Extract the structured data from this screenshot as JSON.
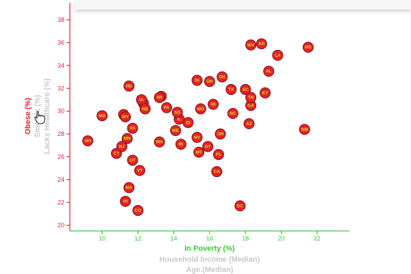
{
  "chart_data": {
    "type": "scatter",
    "title": "",
    "x_labels": {
      "active": "In Poverty (%)",
      "inactive": [
        "Household Income (Median)",
        "Age (Median)"
      ]
    },
    "y_labels": {
      "active": "Obese (%)",
      "inactive": [
        "Smokes (%)",
        "Lacks Healthcare (%)"
      ]
    },
    "xlim": [
      8.2,
      23.8
    ],
    "ylim": [
      19.5,
      39.5
    ],
    "x_ticks": [
      10,
      12,
      14,
      16,
      18,
      20,
      22
    ],
    "y_ticks": [
      20,
      22,
      24,
      26,
      28,
      30,
      32,
      34,
      36,
      38
    ],
    "points": [
      {
        "abbr": "AL",
        "x": 19.3,
        "y": 33.5
      },
      {
        "abbr": "AK",
        "x": 11.2,
        "y": 29.7
      },
      {
        "abbr": "AZ",
        "x": 18.2,
        "y": 28.9
      },
      {
        "abbr": "AR",
        "x": 18.9,
        "y": 35.9
      },
      {
        "abbr": "CA",
        "x": 16.4,
        "y": 24.7
      },
      {
        "abbr": "CO",
        "x": 12.0,
        "y": 21.3
      },
      {
        "abbr": "CT",
        "x": 10.8,
        "y": 26.3
      },
      {
        "abbr": "DE",
        "x": 12.3,
        "y": 30.7
      },
      {
        "abbr": "DC",
        "x": 17.7,
        "y": 21.7
      },
      {
        "abbr": "FL",
        "x": 16.5,
        "y": 26.2
      },
      {
        "abbr": "GA",
        "x": 18.3,
        "y": 30.5
      },
      {
        "abbr": "HI",
        "x": 11.3,
        "y": 22.1
      },
      {
        "abbr": "ID",
        "x": 14.8,
        "y": 29.0
      },
      {
        "abbr": "IL",
        "x": 14.3,
        "y": 29.3
      },
      {
        "abbr": "IN",
        "x": 15.3,
        "y": 32.7
      },
      {
        "abbr": "IA",
        "x": 12.2,
        "y": 31.0
      },
      {
        "abbr": "KS",
        "x": 13.3,
        "y": 31.3
      },
      {
        "abbr": "KY",
        "x": 19.1,
        "y": 31.6
      },
      {
        "abbr": "LA",
        "x": 19.8,
        "y": 34.9
      },
      {
        "abbr": "ME",
        "x": 14.1,
        "y": 28.3
      },
      {
        "abbr": "MD",
        "x": 10.0,
        "y": 29.6
      },
      {
        "abbr": "MA",
        "x": 11.5,
        "y": 23.3
      },
      {
        "abbr": "MI",
        "x": 16.2,
        "y": 30.6
      },
      {
        "abbr": "MN",
        "x": 11.4,
        "y": 27.6
      },
      {
        "abbr": "MS",
        "x": 21.5,
        "y": 35.6
      },
      {
        "abbr": "MO",
        "x": 15.5,
        "y": 30.2
      },
      {
        "abbr": "MT",
        "x": 15.4,
        "y": 26.4
      },
      {
        "abbr": "NE",
        "x": 12.4,
        "y": 30.2
      },
      {
        "abbr": "NV",
        "x": 15.3,
        "y": 27.7
      },
      {
        "abbr": "NH",
        "x": 9.2,
        "y": 27.4
      },
      {
        "abbr": "NJ",
        "x": 11.1,
        "y": 26.9
      },
      {
        "abbr": "NM",
        "x": 21.3,
        "y": 28.4
      },
      {
        "abbr": "NY",
        "x": 15.9,
        "y": 26.9
      },
      {
        "abbr": "NC",
        "x": 17.3,
        "y": 29.8
      },
      {
        "abbr": "ND",
        "x": 11.5,
        "y": 32.2
      },
      {
        "abbr": "OH",
        "x": 16.0,
        "y": 32.6
      },
      {
        "abbr": "OK",
        "x": 16.7,
        "y": 33.0
      },
      {
        "abbr": "OR",
        "x": 16.6,
        "y": 28.0
      },
      {
        "abbr": "PA",
        "x": 13.6,
        "y": 30.3
      },
      {
        "abbr": "RI",
        "x": 14.4,
        "y": 27.1
      },
      {
        "abbr": "SC",
        "x": 18.0,
        "y": 31.9
      },
      {
        "abbr": "SD",
        "x": 14.2,
        "y": 29.9
      },
      {
        "abbr": "TN",
        "x": 18.3,
        "y": 31.2
      },
      {
        "abbr": "TX",
        "x": 17.2,
        "y": 31.9
      },
      {
        "abbr": "UT",
        "x": 11.7,
        "y": 25.7
      },
      {
        "abbr": "VT",
        "x": 12.1,
        "y": 24.8
      },
      {
        "abbr": "VA",
        "x": 11.7,
        "y": 28.5
      },
      {
        "abbr": "WA",
        "x": 13.2,
        "y": 27.3
      },
      {
        "abbr": "WV",
        "x": 18.3,
        "y": 35.8
      },
      {
        "abbr": "WI",
        "x": 13.2,
        "y": 31.2
      },
      {
        "abbr": "WY",
        "x": 11.3,
        "y": 29.5
      }
    ]
  },
  "colors": {
    "point_fill": "#e8202a",
    "point_label": "#c8e61e",
    "y_axis": "#e8202a",
    "x_axis": "#33cc33",
    "inactive_label": "#c8c8c8"
  },
  "cursor": {
    "icon": "hand-pointer-icon"
  }
}
